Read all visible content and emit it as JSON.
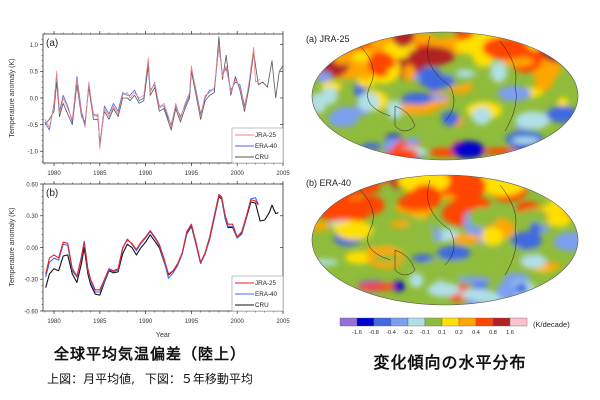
{
  "chart_data": [
    {
      "type": "line",
      "panel_label": "(a)",
      "description_label": "上図：月平均値,",
      "xlabel": "",
      "ylabel": "Temperature anomaly (K)",
      "xlim": [
        1978.8,
        2005
      ],
      "ylim": [
        -1.22,
        1.2
      ],
      "xticks": [
        1980,
        1985,
        1990,
        1995,
        2000,
        2005
      ],
      "xtick_labels": [
        "1980",
        "1985",
        "1990",
        "1995",
        "2000",
        "2005"
      ],
      "yticks": [
        1.0,
        0.5,
        0.0,
        -0.5,
        -1.0
      ],
      "ytick_labels": [
        "1.0",
        "0.5",
        "0.0",
        "-0.5",
        "-1.0"
      ],
      "legend_position": "bottom-right",
      "legend": [
        "JRA-25",
        "ERA-40",
        "CRU"
      ],
      "series": [
        {
          "name": "JRA-25",
          "color": "#f08080",
          "x": [
            1979.0,
            1979.5,
            1980.0,
            1980.3,
            1980.6,
            1981.0,
            1981.5,
            1982.0,
            1982.5,
            1983.0,
            1983.4,
            1983.8,
            1984.3,
            1984.8,
            1985.0,
            1985.5,
            1986.0,
            1986.5,
            1987.0,
            1987.5,
            1988.0,
            1988.3,
            1988.8,
            1989.3,
            1989.8,
            1990.3,
            1990.5,
            1991.0,
            1991.5,
            1992.0,
            1992.5,
            1992.8,
            1993.3,
            1993.8,
            1994.3,
            1994.8,
            1995.0,
            1995.5,
            1996.0,
            1996.5,
            1997.0,
            1997.5,
            1998.0,
            1998.4,
            1998.8,
            1999.3,
            1999.8,
            2000.3,
            2000.8,
            2001.3,
            2001.8,
            2002.0,
            2002.5
          ],
          "y": [
            -0.4,
            -0.55,
            -0.15,
            0.5,
            -0.3,
            0.0,
            -0.2,
            -0.4,
            0.35,
            -0.3,
            -0.55,
            0.3,
            -0.35,
            -0.3,
            -0.95,
            -0.2,
            -0.35,
            -0.15,
            -0.3,
            0.05,
            0.1,
            0.0,
            0.1,
            0.0,
            0.05,
            0.75,
            0.1,
            0.3,
            -0.2,
            -0.1,
            -0.35,
            -0.55,
            -0.1,
            -0.4,
            -0.1,
            0.1,
            0.6,
            0.1,
            -0.35,
            0.05,
            0.1,
            0.2,
            1.0,
            0.4,
            0.6,
            0.1,
            0.35,
            0.2,
            -0.2,
            0.3,
            0.95,
            0.3,
            0.35
          ]
        },
        {
          "name": "ERA-40",
          "color": "#4169e1",
          "x": [
            1979.0,
            1979.5,
            1980.0,
            1980.3,
            1980.6,
            1981.0,
            1981.5,
            1982.0,
            1982.5,
            1983.0,
            1983.4,
            1983.8,
            1984.3,
            1984.8,
            1985.0,
            1985.5,
            1986.0,
            1986.5,
            1987.0,
            1987.5,
            1988.0,
            1988.3,
            1988.8,
            1989.3,
            1989.8,
            1990.3,
            1990.5,
            1991.0,
            1991.5,
            1992.0,
            1992.5,
            1992.8,
            1993.3,
            1993.8,
            1994.3,
            1994.8,
            1995.0,
            1995.5,
            1996.0,
            1996.5,
            1997.0,
            1997.5,
            1998.0,
            1998.4,
            1998.8,
            1999.3,
            1999.8,
            2000.3,
            2000.8,
            2001.3,
            2001.8
          ],
          "y": [
            -0.45,
            -0.6,
            -0.1,
            0.45,
            -0.25,
            0.05,
            -0.15,
            -0.45,
            0.4,
            -0.25,
            -0.5,
            0.25,
            -0.3,
            -0.35,
            -0.9,
            -0.15,
            -0.3,
            -0.1,
            -0.25,
            0.1,
            0.05,
            0.05,
            0.15,
            -0.05,
            0.0,
            0.7,
            0.15,
            0.25,
            -0.15,
            -0.15,
            -0.4,
            -0.5,
            -0.15,
            -0.35,
            -0.15,
            0.05,
            0.55,
            0.15,
            -0.3,
            0.0,
            0.15,
            0.15,
            0.95,
            0.45,
            0.55,
            0.15,
            0.3,
            0.25,
            -0.15,
            0.25,
            0.9
          ]
        },
        {
          "name": "CRU",
          "color": "#555555",
          "x": [
            1979.0,
            1979.5,
            1980.0,
            1980.3,
            1980.6,
            1981.0,
            1981.5,
            1982.0,
            1982.5,
            1983.0,
            1983.4,
            1983.8,
            1984.3,
            1984.8,
            1985.0,
            1985.5,
            1986.0,
            1986.5,
            1987.0,
            1987.5,
            1988.0,
            1988.3,
            1988.8,
            1989.3,
            1989.8,
            1990.3,
            1990.5,
            1991.0,
            1991.5,
            1992.0,
            1992.5,
            1992.8,
            1993.3,
            1993.8,
            1994.3,
            1994.8,
            1995.0,
            1995.5,
            1996.0,
            1996.5,
            1997.0,
            1997.5,
            1998.0,
            1998.4,
            1998.8,
            1999.3,
            1999.8,
            2000.3,
            2000.8,
            2001.3,
            2001.8,
            2002.3,
            2002.8,
            2003.3,
            2003.8,
            2004.2,
            2004.6,
            2005.0
          ],
          "y": [
            -0.5,
            -0.4,
            -0.25,
            0.3,
            -0.35,
            -0.1,
            -0.3,
            -0.5,
            0.25,
            -0.35,
            -0.45,
            0.2,
            -0.4,
            -0.4,
            -0.85,
            -0.25,
            -0.4,
            -0.2,
            -0.35,
            0.0,
            0.0,
            -0.05,
            0.05,
            -0.1,
            -0.05,
            0.6,
            0.05,
            0.2,
            -0.25,
            -0.2,
            -0.45,
            -0.6,
            -0.2,
            -0.45,
            -0.2,
            0.0,
            0.5,
            0.05,
            -0.4,
            -0.05,
            0.05,
            0.1,
            1.15,
            0.35,
            0.8,
            0.05,
            0.4,
            0.15,
            -0.25,
            0.2,
            0.85,
            0.25,
            0.3,
            0.2,
            0.7,
            0.0,
            0.5,
            0.6
          ]
        }
      ]
    },
    {
      "type": "line",
      "panel_label": "(b)",
      "description_label": "下図：５年移動平均",
      "xlabel": "Year",
      "ylabel": "Temperature anomaly (K)",
      "xlim": [
        1978.8,
        2005
      ],
      "ylim": [
        -0.6,
        0.6
      ],
      "xticks": [
        1980,
        1985,
        1990,
        1995,
        2000,
        2005
      ],
      "xtick_labels": [
        "1980",
        "1985",
        "1990",
        "1995",
        "2000",
        "2005"
      ],
      "yticks": [
        0.6,
        0.3,
        0.0,
        -0.3,
        -0.6
      ],
      "ytick_labels": [
        "0.60",
        "0.30",
        "0.00",
        "-0.30",
        "-0.60"
      ],
      "legend_position": "bottom-right",
      "legend": [
        "JRA-25",
        "ERA-40",
        "CRU"
      ],
      "series": [
        {
          "name": "JRA-25",
          "color": "#e8202a",
          "x": [
            1979.1,
            1979.5,
            1980.0,
            1980.5,
            1981.0,
            1981.5,
            1982.0,
            1982.5,
            1983.0,
            1983.3,
            1983.7,
            1984.0,
            1984.5,
            1985.0,
            1985.5,
            1986.0,
            1986.5,
            1987.0,
            1987.5,
            1988.0,
            1988.5,
            1989.0,
            1989.5,
            1990.0,
            1990.5,
            1991.0,
            1991.5,
            1992.0,
            1992.5,
            1993.0,
            1993.5,
            1994.0,
            1994.5,
            1995.0,
            1995.5,
            1996.0,
            1996.5,
            1997.0,
            1997.5,
            1998.0,
            1998.3,
            1998.7,
            1999.0,
            1999.5,
            2000.0,
            2000.5,
            2001.0,
            2001.5,
            2002.0,
            2002.3
          ],
          "y": [
            -0.25,
            -0.1,
            -0.07,
            -0.1,
            0.05,
            0.04,
            -0.2,
            -0.27,
            -0.1,
            0.05,
            -0.2,
            -0.3,
            -0.4,
            -0.4,
            -0.3,
            -0.2,
            -0.22,
            -0.2,
            0.0,
            0.07,
            0.04,
            -0.02,
            0.05,
            0.1,
            0.16,
            0.1,
            0.03,
            -0.1,
            -0.25,
            -0.22,
            -0.15,
            -0.05,
            0.15,
            0.22,
            0.05,
            -0.14,
            -0.05,
            0.1,
            0.3,
            0.5,
            0.48,
            0.3,
            0.22,
            0.22,
            0.1,
            0.15,
            0.3,
            0.45,
            0.44,
            0.4
          ]
        },
        {
          "name": "ERA-40",
          "color": "#3a6ff0",
          "x": [
            1979.1,
            1979.5,
            1980.0,
            1980.5,
            1981.0,
            1981.5,
            1982.0,
            1982.5,
            1983.0,
            1983.3,
            1983.7,
            1984.0,
            1984.5,
            1985.0,
            1985.5,
            1986.0,
            1986.5,
            1987.0,
            1987.5,
            1988.0,
            1988.5,
            1989.0,
            1989.5,
            1990.0,
            1990.5,
            1991.0,
            1991.5,
            1992.0,
            1992.5,
            1993.0,
            1993.5,
            1994.0,
            1994.5,
            1995.0,
            1995.5,
            1996.0,
            1996.5,
            1997.0,
            1997.5,
            1998.0,
            1998.3,
            1998.7,
            1999.0,
            1999.5,
            2000.0,
            2000.5,
            2001.0,
            2001.5,
            2002.0,
            2002.3
          ],
          "y": [
            -0.28,
            -0.14,
            -0.1,
            -0.12,
            0.03,
            0.02,
            -0.22,
            -0.28,
            -0.08,
            0.06,
            -0.22,
            -0.32,
            -0.42,
            -0.42,
            -0.32,
            -0.21,
            -0.23,
            -0.21,
            -0.01,
            0.08,
            0.03,
            -0.03,
            0.04,
            0.09,
            0.15,
            0.09,
            0.02,
            -0.12,
            -0.29,
            -0.24,
            -0.17,
            -0.06,
            0.14,
            0.21,
            0.04,
            -0.15,
            -0.06,
            0.09,
            0.29,
            0.49,
            0.47,
            0.28,
            0.2,
            0.2,
            0.09,
            0.14,
            0.29,
            0.46,
            0.47,
            0.41
          ]
        },
        {
          "name": "CRU",
          "color": "#111111",
          "x": [
            1979.1,
            1979.5,
            1980.0,
            1980.5,
            1981.0,
            1981.5,
            1982.0,
            1982.5,
            1983.0,
            1983.3,
            1983.7,
            1984.0,
            1984.5,
            1985.0,
            1985.5,
            1986.0,
            1986.5,
            1987.0,
            1987.5,
            1988.0,
            1988.5,
            1989.0,
            1989.5,
            1990.0,
            1990.5,
            1991.0,
            1991.5,
            1992.0,
            1992.5,
            1993.0,
            1993.5,
            1994.0,
            1994.5,
            1995.0,
            1995.5,
            1996.0,
            1996.5,
            1997.0,
            1997.5,
            1998.0,
            1998.3,
            1998.7,
            1999.0,
            1999.5,
            2000.0,
            2000.5,
            2001.0,
            2001.5,
            2002.0,
            2002.5,
            2003.0,
            2003.5,
            2003.8,
            2004.2,
            2004.5
          ],
          "y": [
            -0.38,
            -0.25,
            -0.2,
            -0.22,
            -0.08,
            -0.07,
            -0.25,
            -0.33,
            -0.15,
            0.0,
            -0.25,
            -0.35,
            -0.44,
            -0.45,
            -0.33,
            -0.22,
            -0.24,
            -0.23,
            -0.06,
            0.03,
            0.0,
            -0.07,
            0.0,
            0.05,
            0.12,
            0.06,
            0.0,
            -0.13,
            -0.26,
            -0.22,
            -0.16,
            -0.06,
            0.13,
            0.2,
            0.03,
            -0.15,
            -0.06,
            0.08,
            0.28,
            0.48,
            0.46,
            0.27,
            0.19,
            0.19,
            0.09,
            0.13,
            0.28,
            0.43,
            0.42,
            0.25,
            0.26,
            0.33,
            0.4,
            0.32,
            0.33
          ]
        }
      ]
    },
    {
      "type": "heatmap",
      "panel_label": "(a) JRA-25",
      "projection": "Mollweide/Hammer global",
      "colorbar_unit": "(K/decade)",
      "colorbar_levels": [
        "-1.6",
        "-0.8",
        "-0.4",
        "-0.2",
        "-0.1",
        "0.1",
        "0.2",
        "0.4",
        "0.8",
        "1.6"
      ],
      "colorbar_colors": [
        "#9370db",
        "#0000cd",
        "#4169e1",
        "#7b9ff0",
        "#b0e0e6",
        "#8fbc3a",
        "#ffe000",
        "#ffa500",
        "#ff4500",
        "#b22222",
        "#ffc0cb"
      ]
    },
    {
      "type": "heatmap",
      "panel_label": "(b) ERA-40",
      "projection": "Mollweide/Hammer global",
      "colorbar_unit": "(K/decade)"
    }
  ],
  "captions": {
    "left_title": "全球平均気温偏差（陸上）",
    "left_sub_1": "上図：月平均値,",
    "left_sub_2": "下図：５年移動平均",
    "right_title": "変化傾向の水平分布"
  }
}
